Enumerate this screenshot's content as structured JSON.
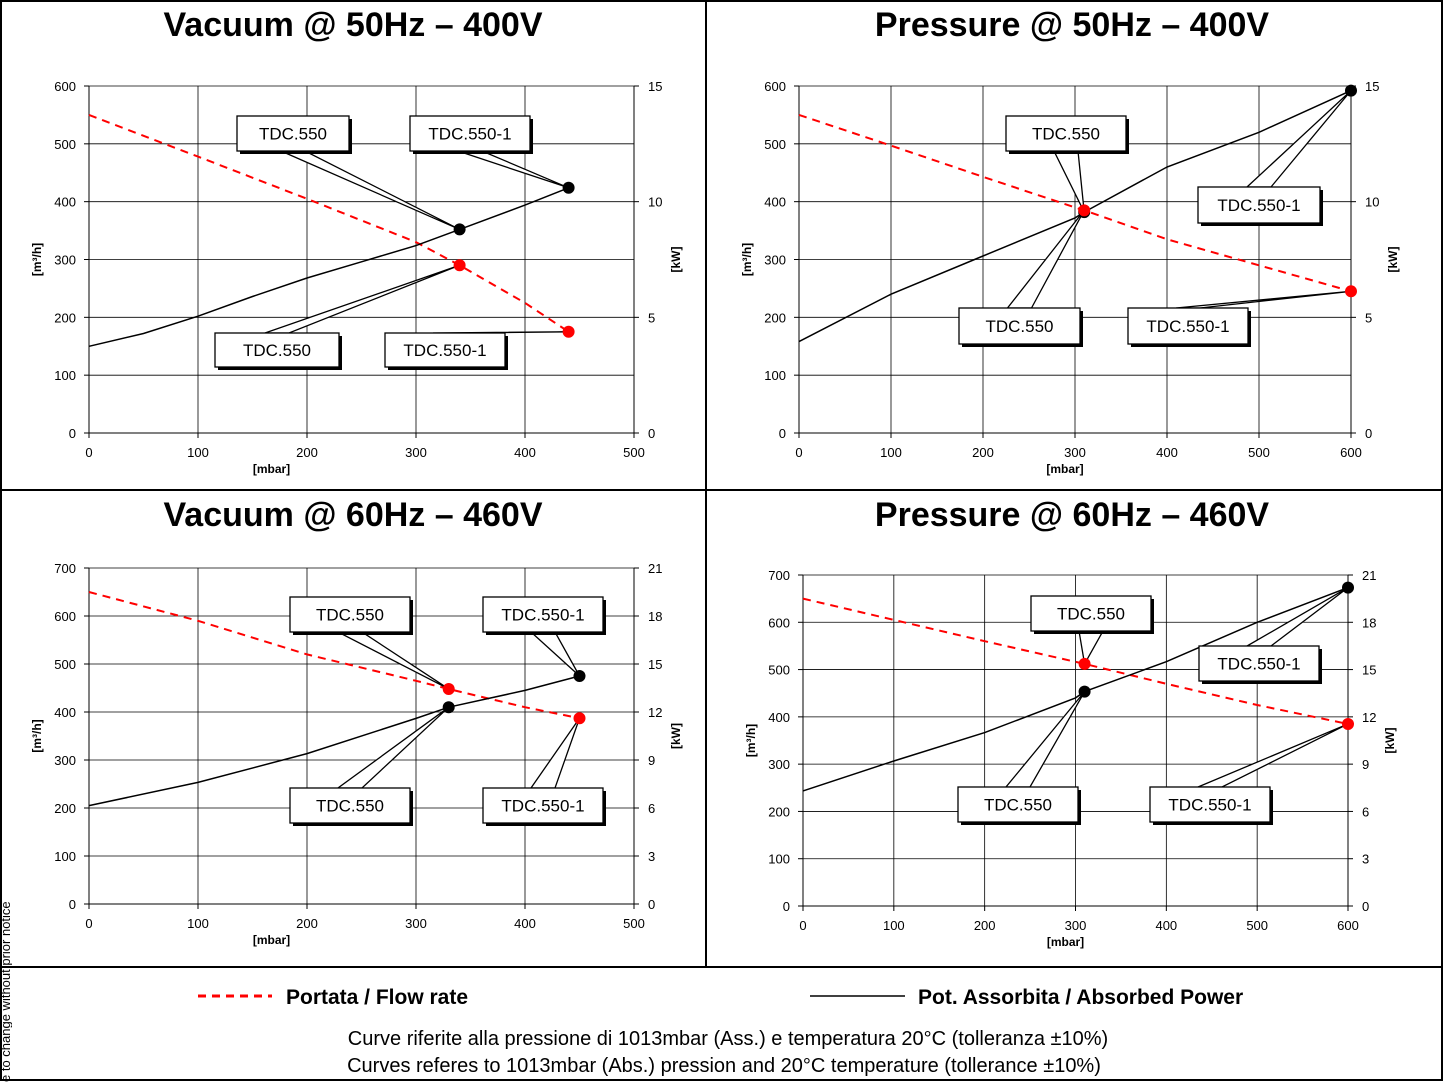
{
  "colors": {
    "flow": "#ff0000",
    "power": "#000000",
    "grid": "#000000"
  },
  "legend": {
    "flow_label": "Portata / Flow rate",
    "power_label": "Pot. Assorbita / Absorbed Power"
  },
  "notes": {
    "line1": "Curve riferite alla pressione di 1013mbar (Ass.) e temperatura 20°C (tolleranza ±10%)",
    "line2": "Curves referes to 1013mbar (Abs.) pression and 20°C temperature (tollerance ±10%)",
    "side": "e to change without prior notice"
  },
  "chart_data": [
    {
      "type": "line",
      "title": "Vacuum @ 50Hz – 400V",
      "xlabel": "[mbar]",
      "ylabel": "[m³/h]",
      "y2label": "[kW]",
      "xlim": [
        0,
        500
      ],
      "ylim": [
        0,
        600
      ],
      "y2lim": [
        0,
        15
      ],
      "xticks": [
        0,
        100,
        200,
        300,
        400,
        500
      ],
      "yticks": [
        0,
        100,
        200,
        300,
        400,
        500,
        600
      ],
      "y2ticks": [
        0,
        5,
        10,
        15
      ],
      "grid": true,
      "series": [
        {
          "name": "Portata / Flow rate",
          "axis": "left",
          "style": "dashed",
          "color": "#ff0000",
          "x": [
            0,
            100,
            200,
            300,
            340,
            400,
            440
          ],
          "y": [
            550,
            478,
            405,
            330,
            290,
            225,
            175
          ]
        },
        {
          "name": "Pot. Assorbita / Absorbed Power",
          "axis": "right",
          "style": "solid",
          "color": "#000000",
          "x": [
            0,
            50,
            100,
            150,
            200,
            250,
            300,
            340,
            400,
            440
          ],
          "y": [
            3.75,
            4.3,
            5.05,
            5.9,
            6.7,
            7.4,
            8.1,
            8.8,
            9.85,
            10.6
          ]
        }
      ],
      "annotations": [
        {
          "text": "TDC.550",
          "x": 340,
          "y": 8.8,
          "axis": "right"
        },
        {
          "text": "TDC.550-1",
          "x": 440,
          "y": 10.6,
          "axis": "right"
        },
        {
          "text": "TDC.550",
          "x": 340,
          "y": 290,
          "axis": "left"
        },
        {
          "text": "TDC.550-1",
          "x": 440,
          "y": 175,
          "axis": "left"
        }
      ]
    },
    {
      "type": "line",
      "title": "Pressure @ 50Hz – 400V",
      "xlabel": "[mbar]",
      "ylabel": "[m³/h]",
      "y2label": "[kW]",
      "xlim": [
        0,
        600
      ],
      "ylim": [
        0,
        600
      ],
      "y2lim": [
        0,
        15
      ],
      "xticks": [
        0,
        100,
        200,
        300,
        400,
        500,
        600
      ],
      "yticks": [
        0,
        100,
        200,
        300,
        400,
        500,
        600
      ],
      "y2ticks": [
        0,
        5,
        10,
        15
      ],
      "grid": true,
      "series": [
        {
          "name": "Portata / Flow rate",
          "axis": "left",
          "style": "dashed",
          "color": "#ff0000",
          "x": [
            0,
            100,
            200,
            300,
            310,
            400,
            500,
            600
          ],
          "y": [
            550,
            497,
            443,
            390,
            385,
            335,
            290,
            245
          ]
        },
        {
          "name": "Pot. Assorbita / Absorbed Power",
          "axis": "right",
          "style": "solid",
          "color": "#000000",
          "x": [
            0,
            100,
            200,
            300,
            310,
            400,
            500,
            600
          ],
          "y": [
            3.95,
            6.0,
            7.65,
            9.3,
            9.55,
            11.5,
            13.0,
            14.8
          ]
        }
      ],
      "annotations": [
        {
          "text": "TDC.550",
          "x": 310,
          "y": 9.55,
          "axis": "right"
        },
        {
          "text": "TDC.550-1",
          "x": 600,
          "y": 14.8,
          "axis": "right"
        },
        {
          "text": "TDC.550",
          "x": 310,
          "y": 385,
          "axis": "left"
        },
        {
          "text": "TDC.550-1",
          "x": 600,
          "y": 245,
          "axis": "left"
        }
      ]
    },
    {
      "type": "line",
      "title": "Vacuum @ 60Hz – 460V",
      "xlabel": "[mbar]",
      "ylabel": "[m³/h]",
      "y2label": "[kW]",
      "xlim": [
        0,
        500
      ],
      "ylim": [
        0,
        700
      ],
      "y2lim": [
        0,
        21
      ],
      "xticks": [
        0,
        100,
        200,
        300,
        400,
        500
      ],
      "yticks": [
        0,
        100,
        200,
        300,
        400,
        500,
        600,
        700
      ],
      "y2ticks": [
        0,
        3,
        6,
        9,
        12,
        15,
        18,
        21
      ],
      "grid": true,
      "series": [
        {
          "name": "Portata / Flow rate",
          "axis": "left",
          "style": "dashed",
          "color": "#ff0000",
          "x": [
            0,
            100,
            200,
            300,
            330,
            400,
            450
          ],
          "y": [
            650,
            590,
            520,
            465,
            448,
            410,
            387
          ]
        },
        {
          "name": "Pot. Assorbita / Absorbed Power",
          "axis": "right",
          "style": "solid",
          "color": "#000000",
          "x": [
            0,
            100,
            200,
            300,
            330,
            400,
            450
          ],
          "y": [
            6.15,
            7.6,
            9.4,
            11.6,
            12.3,
            13.35,
            14.25
          ]
        }
      ],
      "annotations": [
        {
          "text": "TDC.550",
          "x": 330,
          "y": 448,
          "axis": "left"
        },
        {
          "text": "TDC.550-1",
          "x": 450,
          "y": 14.25,
          "axis": "right"
        },
        {
          "text": "TDC.550",
          "x": 330,
          "y": 12.3,
          "axis": "right"
        },
        {
          "text": "TDC.550-1",
          "x": 450,
          "y": 387,
          "axis": "left"
        }
      ]
    },
    {
      "type": "line",
      "title": "Pressure @ 60Hz – 460V",
      "xlabel": "[mbar]",
      "ylabel": "[m³/h]",
      "y2label": "[kW]",
      "xlim": [
        0,
        600
      ],
      "ylim": [
        0,
        700
      ],
      "y2lim": [
        0,
        21
      ],
      "xticks": [
        0,
        100,
        200,
        300,
        400,
        500,
        600
      ],
      "yticks": [
        0,
        100,
        200,
        300,
        400,
        500,
        600,
        700
      ],
      "y2ticks": [
        0,
        3,
        6,
        9,
        12,
        15,
        18,
        21
      ],
      "grid": true,
      "series": [
        {
          "name": "Portata / Flow rate",
          "axis": "left",
          "style": "dashed",
          "color": "#ff0000",
          "x": [
            0,
            100,
            200,
            310,
            400,
            500,
            600
          ],
          "y": [
            650,
            605,
            560,
            512,
            470,
            425,
            385
          ]
        },
        {
          "name": "Pot. Assorbita / Absorbed Power",
          "axis": "right",
          "style": "solid",
          "color": "#000000",
          "x": [
            0,
            100,
            200,
            300,
            310,
            400,
            500,
            600
          ],
          "y": [
            7.3,
            9.2,
            11.0,
            13.2,
            13.6,
            15.5,
            18.0,
            20.2
          ]
        }
      ],
      "annotations": [
        {
          "text": "TDC.550",
          "x": 310,
          "y": 512,
          "axis": "left"
        },
        {
          "text": "TDC.550-1",
          "x": 600,
          "y": 20.2,
          "axis": "right"
        },
        {
          "text": "TDC.550",
          "x": 310,
          "y": 13.6,
          "axis": "right"
        },
        {
          "text": "TDC.550-1",
          "x": 600,
          "y": 385,
          "axis": "left"
        }
      ]
    }
  ]
}
